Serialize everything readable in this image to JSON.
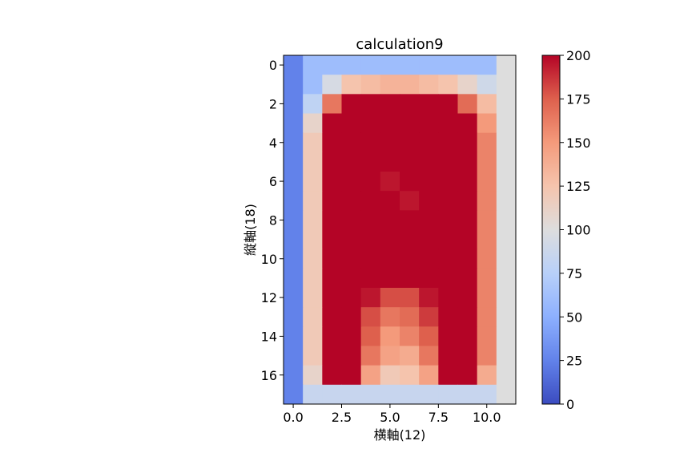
{
  "chart_data": {
    "type": "heatmap",
    "title": "calculation9",
    "xlabel": "横軸(12)",
    "ylabel": "縦軸(18)",
    "n_cols": 12,
    "n_rows": 18,
    "colormap": "coolwarm",
    "vmin": 0,
    "vmax": 200,
    "x_ticks": [
      0,
      2.5,
      5,
      7.5,
      10
    ],
    "x_tick_labels": [
      "0.0",
      "2.5",
      "5.0",
      "7.5",
      "10.0"
    ],
    "y_ticks": [
      0,
      2,
      4,
      6,
      8,
      10,
      12,
      14,
      16
    ],
    "y_tick_labels": [
      "0",
      "2",
      "4",
      "6",
      "8",
      "10",
      "12",
      "14",
      "16"
    ],
    "colorbar_ticks": [
      0,
      25,
      50,
      75,
      100,
      125,
      150,
      175,
      200
    ],
    "colorbar_tick_labels": [
      "0",
      "25",
      "50",
      "75",
      "100",
      "125",
      "150",
      "175",
      "200"
    ],
    "values": [
      [
        25,
        60,
        60,
        60,
        60,
        60,
        60,
        60,
        60,
        60,
        60,
        100
      ],
      [
        25,
        60,
        95,
        125,
        130,
        135,
        135,
        130,
        125,
        110,
        90,
        100
      ],
      [
        25,
        80,
        165,
        200,
        200,
        200,
        200,
        200,
        200,
        170,
        130,
        100
      ],
      [
        25,
        110,
        200,
        200,
        200,
        200,
        200,
        200,
        200,
        200,
        150,
        100
      ],
      [
        25,
        120,
        200,
        200,
        200,
        200,
        200,
        200,
        200,
        200,
        160,
        100
      ],
      [
        25,
        120,
        200,
        200,
        200,
        200,
        200,
        200,
        200,
        200,
        160,
        100
      ],
      [
        25,
        120,
        200,
        200,
        200,
        195,
        200,
        200,
        200,
        200,
        160,
        100
      ],
      [
        25,
        120,
        200,
        200,
        200,
        200,
        195,
        200,
        200,
        200,
        160,
        100
      ],
      [
        25,
        120,
        200,
        200,
        200,
        200,
        200,
        200,
        200,
        200,
        160,
        100
      ],
      [
        25,
        120,
        200,
        200,
        200,
        200,
        200,
        200,
        200,
        200,
        160,
        100
      ],
      [
        25,
        120,
        200,
        200,
        200,
        200,
        200,
        200,
        200,
        200,
        160,
        100
      ],
      [
        25,
        120,
        200,
        200,
        200,
        200,
        200,
        200,
        200,
        200,
        160,
        100
      ],
      [
        25,
        120,
        200,
        200,
        195,
        180,
        180,
        195,
        200,
        200,
        160,
        100
      ],
      [
        25,
        120,
        200,
        200,
        180,
        165,
        170,
        185,
        200,
        200,
        160,
        100
      ],
      [
        25,
        120,
        200,
        200,
        175,
        150,
        160,
        175,
        200,
        200,
        160,
        100
      ],
      [
        25,
        120,
        200,
        200,
        165,
        145,
        140,
        165,
        200,
        200,
        160,
        100
      ],
      [
        25,
        110,
        200,
        200,
        145,
        120,
        125,
        145,
        200,
        200,
        140,
        100
      ],
      [
        25,
        85,
        85,
        85,
        85,
        85,
        85,
        85,
        85,
        85,
        85,
        100
      ]
    ]
  }
}
